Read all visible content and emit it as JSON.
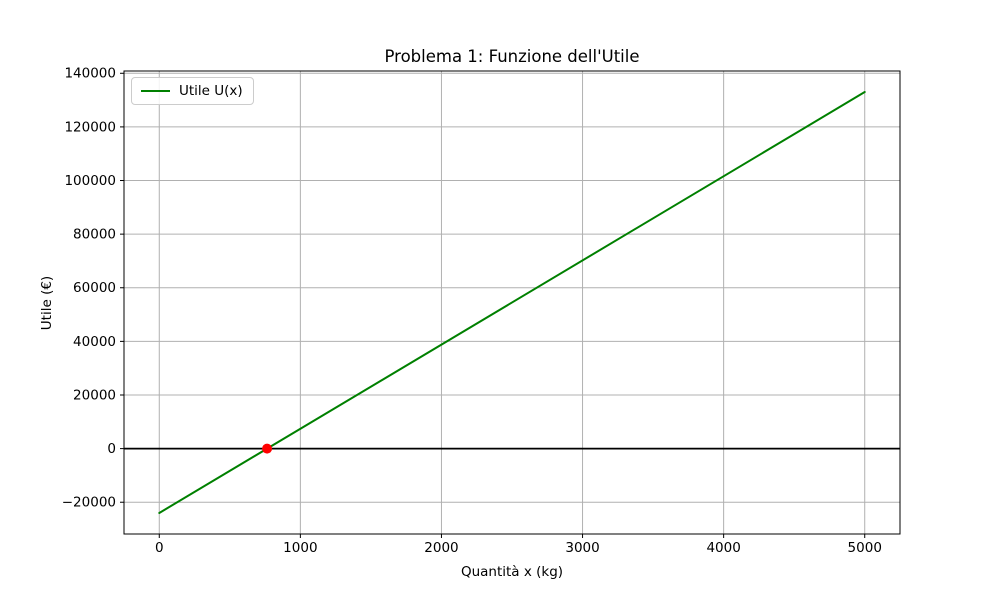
{
  "chart_data": {
    "type": "line",
    "title": "Problema 1: Funzione dell'Utile",
    "xlabel": "Quantità x (kg)",
    "ylabel": "Utile (€)",
    "xlim": [
      -250,
      5250
    ],
    "ylim": [
      -31850,
      140850
    ],
    "x_ticks": [
      0,
      1000,
      2000,
      3000,
      4000,
      5000
    ],
    "y_ticks": [
      -20000,
      0,
      20000,
      40000,
      60000,
      80000,
      100000,
      120000,
      140000
    ],
    "grid": true,
    "grid_color": "#b0b0b0",
    "background_color": "#ffffff",
    "series": [
      {
        "name": "Utile U(x)",
        "color": "#008000",
        "line_width": 2,
        "x": [
          0,
          5000
        ],
        "y": [
          -24000,
          133000
        ]
      }
    ],
    "zero_line": {
      "y": 0,
      "color": "#000000",
      "line_width": 1.8
    },
    "break_even_point": {
      "x": 764,
      "y": 0,
      "color": "#ff0000",
      "radius": 5
    },
    "legend": {
      "position": "upper left",
      "entries": [
        {
          "label": "Utile U(x)",
          "color": "#008000"
        }
      ]
    }
  }
}
